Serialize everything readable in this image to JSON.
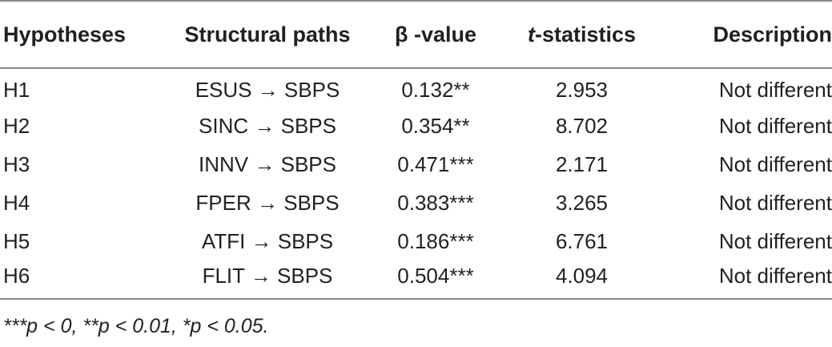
{
  "table": {
    "headers": {
      "hypotheses": "Hypotheses",
      "structural_paths": "Structural paths",
      "beta_value": "β -value",
      "t_prefix": "t",
      "t_suffix": "-statistics",
      "description": "Description"
    },
    "rows": [
      {
        "hypothesis": "H1",
        "path": "ESUS → SBPS",
        "beta": "0.132**",
        "t": "2.953",
        "description": "Not different"
      },
      {
        "hypothesis": "H2",
        "path": "SINC → SBPS",
        "beta": "0.354**",
        "t": "8.702",
        "description": "Not different"
      },
      {
        "hypothesis": "H3",
        "path": "INNV → SBPS",
        "beta": "0.471***",
        "t": "2.171",
        "description": "Not different"
      },
      {
        "hypothesis": "H4",
        "path": "FPER → SBPS",
        "beta": "0.383***",
        "t": "3.265",
        "description": "Not different"
      },
      {
        "hypothesis": "H5",
        "path": "ATFI → SBPS",
        "beta": "0.186***",
        "t": "6.761",
        "description": "Not different"
      },
      {
        "hypothesis": "H6",
        "path": "FLIT → SBPS",
        "beta": "0.504***",
        "t": "4.094",
        "description": "Not different"
      }
    ]
  },
  "footnote": "***p < 0, **p < 0.01, *p < 0.05."
}
